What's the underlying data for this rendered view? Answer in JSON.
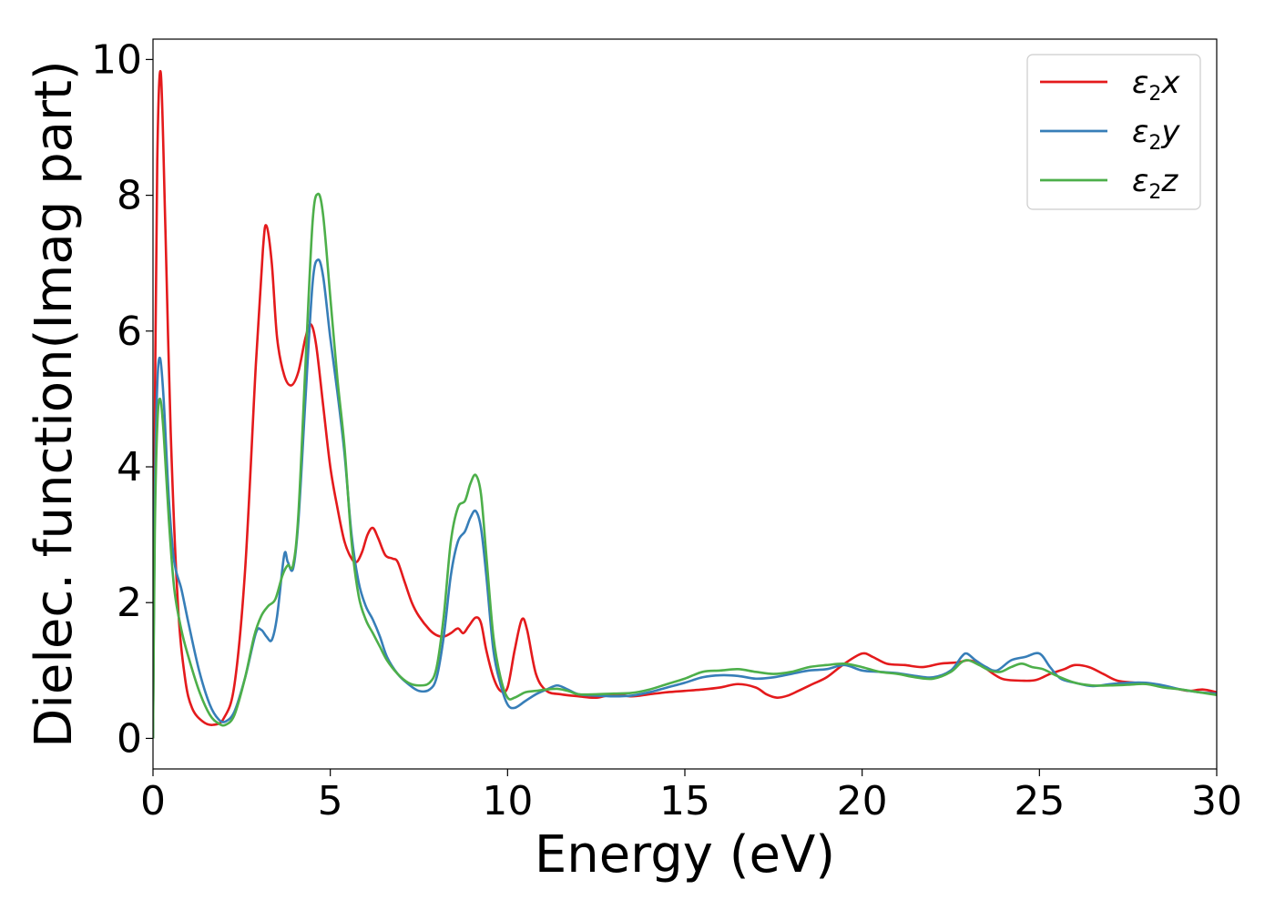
{
  "chart_data": {
    "type": "line",
    "xlabel": "Energy (eV)",
    "ylabel": "Dielec. function(Imag part)",
    "xlim": [
      0,
      30
    ],
    "ylim": [
      -0.45,
      10.3
    ],
    "x_ticks": [
      0,
      5,
      10,
      15,
      20,
      25,
      30
    ],
    "x_tick_labels": [
      "0",
      "5",
      "10",
      "15",
      "20",
      "25",
      "30"
    ],
    "y_ticks": [
      0,
      2,
      4,
      6,
      8,
      10
    ],
    "y_tick_labels": [
      "0",
      "2",
      "4",
      "6",
      "8",
      "10"
    ],
    "grid": false,
    "legend_position": "top-right",
    "series": [
      {
        "name": "ε2x",
        "legend": {
          "base": "ε",
          "sub": "2",
          "tail": "x"
        },
        "color": "#e41a1c",
        "points": [
          [
            0,
            0
          ],
          [
            0.05,
            4.5
          ],
          [
            0.12,
            8.5
          ],
          [
            0.22,
            9.8
          ],
          [
            0.35,
            7.5
          ],
          [
            0.5,
            4.5
          ],
          [
            0.7,
            2.0
          ],
          [
            0.9,
            0.9
          ],
          [
            1.1,
            0.45
          ],
          [
            1.4,
            0.25
          ],
          [
            1.7,
            0.2
          ],
          [
            2.0,
            0.3
          ],
          [
            2.3,
            0.8
          ],
          [
            2.6,
            2.5
          ],
          [
            2.9,
            5.5
          ],
          [
            3.1,
            7.2
          ],
          [
            3.2,
            7.55
          ],
          [
            3.35,
            7.0
          ],
          [
            3.5,
            5.9
          ],
          [
            3.7,
            5.35
          ],
          [
            3.9,
            5.2
          ],
          [
            4.1,
            5.4
          ],
          [
            4.3,
            5.9
          ],
          [
            4.45,
            6.1
          ],
          [
            4.6,
            5.8
          ],
          [
            4.8,
            4.9
          ],
          [
            5.0,
            4.0
          ],
          [
            5.2,
            3.4
          ],
          [
            5.4,
            2.9
          ],
          [
            5.6,
            2.65
          ],
          [
            5.75,
            2.6
          ],
          [
            5.9,
            2.75
          ],
          [
            6.05,
            3.0
          ],
          [
            6.2,
            3.1
          ],
          [
            6.35,
            2.95
          ],
          [
            6.55,
            2.7
          ],
          [
            6.75,
            2.65
          ],
          [
            6.9,
            2.6
          ],
          [
            7.1,
            2.3
          ],
          [
            7.3,
            2.0
          ],
          [
            7.5,
            1.8
          ],
          [
            7.8,
            1.6
          ],
          [
            8.0,
            1.52
          ],
          [
            8.2,
            1.5
          ],
          [
            8.4,
            1.55
          ],
          [
            8.6,
            1.62
          ],
          [
            8.75,
            1.55
          ],
          [
            8.9,
            1.65
          ],
          [
            9.1,
            1.78
          ],
          [
            9.25,
            1.7
          ],
          [
            9.4,
            1.3
          ],
          [
            9.6,
            0.9
          ],
          [
            9.8,
            0.7
          ],
          [
            10.0,
            0.75
          ],
          [
            10.2,
            1.3
          ],
          [
            10.4,
            1.75
          ],
          [
            10.55,
            1.6
          ],
          [
            10.8,
            0.95
          ],
          [
            11.1,
            0.7
          ],
          [
            11.5,
            0.65
          ],
          [
            12.0,
            0.62
          ],
          [
            12.5,
            0.6
          ],
          [
            13.0,
            0.65
          ],
          [
            13.5,
            0.62
          ],
          [
            14.0,
            0.65
          ],
          [
            14.5,
            0.68
          ],
          [
            15.0,
            0.7
          ],
          [
            15.5,
            0.72
          ],
          [
            16.0,
            0.75
          ],
          [
            16.5,
            0.8
          ],
          [
            17.0,
            0.75
          ],
          [
            17.3,
            0.65
          ],
          [
            17.6,
            0.6
          ],
          [
            17.9,
            0.63
          ],
          [
            18.2,
            0.7
          ],
          [
            18.6,
            0.8
          ],
          [
            19.0,
            0.9
          ],
          [
            19.5,
            1.1
          ],
          [
            20.0,
            1.25
          ],
          [
            20.3,
            1.2
          ],
          [
            20.7,
            1.1
          ],
          [
            21.2,
            1.08
          ],
          [
            21.7,
            1.05
          ],
          [
            22.2,
            1.1
          ],
          [
            22.7,
            1.12
          ],
          [
            23.0,
            1.15
          ],
          [
            23.3,
            1.1
          ],
          [
            23.7,
            0.95
          ],
          [
            24.0,
            0.87
          ],
          [
            24.5,
            0.85
          ],
          [
            24.9,
            0.86
          ],
          [
            25.3,
            0.95
          ],
          [
            25.7,
            1.02
          ],
          [
            26.0,
            1.08
          ],
          [
            26.4,
            1.05
          ],
          [
            26.8,
            0.95
          ],
          [
            27.2,
            0.85
          ],
          [
            27.7,
            0.82
          ],
          [
            28.2,
            0.8
          ],
          [
            28.7,
            0.75
          ],
          [
            29.2,
            0.7
          ],
          [
            29.6,
            0.72
          ],
          [
            30.0,
            0.68
          ]
        ]
      },
      {
        "name": "ε2y",
        "legend": {
          "base": "ε",
          "sub": "2",
          "tail": "y"
        },
        "color": "#377eb8",
        "points": [
          [
            0,
            0
          ],
          [
            0.05,
            3.5
          ],
          [
            0.12,
            5.2
          ],
          [
            0.2,
            5.6
          ],
          [
            0.3,
            5.0
          ],
          [
            0.45,
            3.5
          ],
          [
            0.6,
            2.6
          ],
          [
            0.8,
            2.2
          ],
          [
            1.0,
            1.7
          ],
          [
            1.3,
            1.0
          ],
          [
            1.6,
            0.5
          ],
          [
            1.85,
            0.28
          ],
          [
            2.05,
            0.25
          ],
          [
            2.3,
            0.4
          ],
          [
            2.6,
            0.9
          ],
          [
            2.9,
            1.55
          ],
          [
            3.05,
            1.6
          ],
          [
            3.2,
            1.5
          ],
          [
            3.35,
            1.45
          ],
          [
            3.5,
            1.8
          ],
          [
            3.7,
            2.7
          ],
          [
            3.8,
            2.6
          ],
          [
            3.95,
            2.5
          ],
          [
            4.1,
            3.2
          ],
          [
            4.3,
            5.0
          ],
          [
            4.5,
            6.7
          ],
          [
            4.65,
            7.05
          ],
          [
            4.8,
            6.8
          ],
          [
            5.0,
            5.9
          ],
          [
            5.2,
            5.1
          ],
          [
            5.4,
            4.2
          ],
          [
            5.6,
            3.0
          ],
          [
            5.8,
            2.3
          ],
          [
            6.0,
            1.95
          ],
          [
            6.2,
            1.75
          ],
          [
            6.4,
            1.5
          ],
          [
            6.6,
            1.2
          ],
          [
            6.9,
            0.95
          ],
          [
            7.2,
            0.8
          ],
          [
            7.5,
            0.7
          ],
          [
            7.8,
            0.72
          ],
          [
            8.0,
            0.9
          ],
          [
            8.2,
            1.5
          ],
          [
            8.4,
            2.4
          ],
          [
            8.6,
            2.9
          ],
          [
            8.8,
            3.05
          ],
          [
            8.95,
            3.25
          ],
          [
            9.1,
            3.35
          ],
          [
            9.25,
            3.1
          ],
          [
            9.4,
            2.4
          ],
          [
            9.6,
            1.3
          ],
          [
            9.8,
            0.8
          ],
          [
            10.0,
            0.5
          ],
          [
            10.2,
            0.45
          ],
          [
            10.5,
            0.55
          ],
          [
            10.8,
            0.65
          ],
          [
            11.1,
            0.72
          ],
          [
            11.4,
            0.78
          ],
          [
            11.7,
            0.72
          ],
          [
            12.0,
            0.65
          ],
          [
            12.5,
            0.63
          ],
          [
            13.0,
            0.62
          ],
          [
            13.5,
            0.63
          ],
          [
            14.0,
            0.68
          ],
          [
            14.5,
            0.75
          ],
          [
            15.0,
            0.82
          ],
          [
            15.5,
            0.9
          ],
          [
            16.0,
            0.93
          ],
          [
            16.5,
            0.92
          ],
          [
            17.0,
            0.88
          ],
          [
            17.5,
            0.9
          ],
          [
            18.0,
            0.95
          ],
          [
            18.5,
            1.0
          ],
          [
            19.0,
            1.02
          ],
          [
            19.5,
            1.08
          ],
          [
            20.0,
            1.0
          ],
          [
            20.5,
            0.98
          ],
          [
            21.0,
            0.96
          ],
          [
            21.5,
            0.92
          ],
          [
            22.0,
            0.9
          ],
          [
            22.5,
            1.0
          ],
          [
            22.8,
            1.2
          ],
          [
            22.95,
            1.25
          ],
          [
            23.2,
            1.15
          ],
          [
            23.5,
            1.05
          ],
          [
            23.8,
            1.0
          ],
          [
            24.2,
            1.15
          ],
          [
            24.6,
            1.2
          ],
          [
            25.0,
            1.25
          ],
          [
            25.3,
            1.05
          ],
          [
            25.6,
            0.88
          ],
          [
            26.0,
            0.82
          ],
          [
            26.5,
            0.77
          ],
          [
            27.0,
            0.8
          ],
          [
            27.5,
            0.82
          ],
          [
            28.0,
            0.82
          ],
          [
            28.5,
            0.78
          ],
          [
            29.0,
            0.72
          ],
          [
            29.5,
            0.68
          ],
          [
            30.0,
            0.66
          ]
        ]
      },
      {
        "name": "ε2z",
        "legend": {
          "base": "ε",
          "sub": "2",
          "tail": "z"
        },
        "color": "#4daf4a",
        "points": [
          [
            0,
            0
          ],
          [
            0.05,
            3.0
          ],
          [
            0.12,
            4.6
          ],
          [
            0.2,
            5.0
          ],
          [
            0.3,
            4.5
          ],
          [
            0.45,
            3.2
          ],
          [
            0.6,
            2.2
          ],
          [
            0.8,
            1.6
          ],
          [
            1.0,
            1.2
          ],
          [
            1.3,
            0.7
          ],
          [
            1.6,
            0.35
          ],
          [
            1.85,
            0.22
          ],
          [
            2.05,
            0.2
          ],
          [
            2.3,
            0.35
          ],
          [
            2.6,
            0.9
          ],
          [
            2.85,
            1.5
          ],
          [
            3.05,
            1.8
          ],
          [
            3.25,
            1.95
          ],
          [
            3.45,
            2.05
          ],
          [
            3.65,
            2.4
          ],
          [
            3.8,
            2.55
          ],
          [
            3.95,
            2.55
          ],
          [
            4.1,
            3.3
          ],
          [
            4.3,
            5.5
          ],
          [
            4.5,
            7.6
          ],
          [
            4.65,
            8.02
          ],
          [
            4.8,
            7.7
          ],
          [
            5.0,
            6.5
          ],
          [
            5.2,
            5.3
          ],
          [
            5.4,
            4.3
          ],
          [
            5.6,
            2.9
          ],
          [
            5.8,
            2.1
          ],
          [
            6.0,
            1.75
          ],
          [
            6.2,
            1.55
          ],
          [
            6.4,
            1.35
          ],
          [
            6.6,
            1.15
          ],
          [
            6.9,
            0.95
          ],
          [
            7.2,
            0.82
          ],
          [
            7.5,
            0.78
          ],
          [
            7.8,
            0.82
          ],
          [
            8.0,
            1.05
          ],
          [
            8.2,
            1.8
          ],
          [
            8.4,
            2.9
          ],
          [
            8.6,
            3.4
          ],
          [
            8.8,
            3.5
          ],
          [
            8.95,
            3.75
          ],
          [
            9.1,
            3.88
          ],
          [
            9.25,
            3.6
          ],
          [
            9.4,
            2.7
          ],
          [
            9.6,
            1.5
          ],
          [
            9.8,
            0.9
          ],
          [
            10.0,
            0.6
          ],
          [
            10.2,
            0.6
          ],
          [
            10.5,
            0.68
          ],
          [
            10.8,
            0.7
          ],
          [
            11.1,
            0.72
          ],
          [
            11.4,
            0.73
          ],
          [
            11.7,
            0.7
          ],
          [
            12.0,
            0.65
          ],
          [
            12.5,
            0.65
          ],
          [
            13.0,
            0.66
          ],
          [
            13.5,
            0.67
          ],
          [
            14.0,
            0.72
          ],
          [
            14.5,
            0.8
          ],
          [
            15.0,
            0.88
          ],
          [
            15.5,
            0.98
          ],
          [
            16.0,
            1.0
          ],
          [
            16.5,
            1.02
          ],
          [
            17.0,
            0.98
          ],
          [
            17.5,
            0.95
          ],
          [
            18.0,
            0.98
          ],
          [
            18.5,
            1.05
          ],
          [
            19.0,
            1.08
          ],
          [
            19.5,
            1.1
          ],
          [
            20.0,
            1.05
          ],
          [
            20.5,
            0.98
          ],
          [
            21.0,
            0.95
          ],
          [
            21.5,
            0.9
          ],
          [
            22.0,
            0.88
          ],
          [
            22.5,
            0.98
          ],
          [
            22.8,
            1.12
          ],
          [
            23.0,
            1.15
          ],
          [
            23.3,
            1.08
          ],
          [
            23.6,
            1.0
          ],
          [
            23.9,
            0.98
          ],
          [
            24.2,
            1.05
          ],
          [
            24.5,
            1.1
          ],
          [
            24.8,
            1.05
          ],
          [
            25.1,
            1.02
          ],
          [
            25.5,
            0.92
          ],
          [
            26.0,
            0.82
          ],
          [
            26.5,
            0.78
          ],
          [
            27.0,
            0.78
          ],
          [
            27.5,
            0.79
          ],
          [
            28.0,
            0.8
          ],
          [
            28.5,
            0.75
          ],
          [
            29.0,
            0.72
          ],
          [
            29.5,
            0.68
          ],
          [
            30.0,
            0.64
          ]
        ]
      }
    ]
  }
}
